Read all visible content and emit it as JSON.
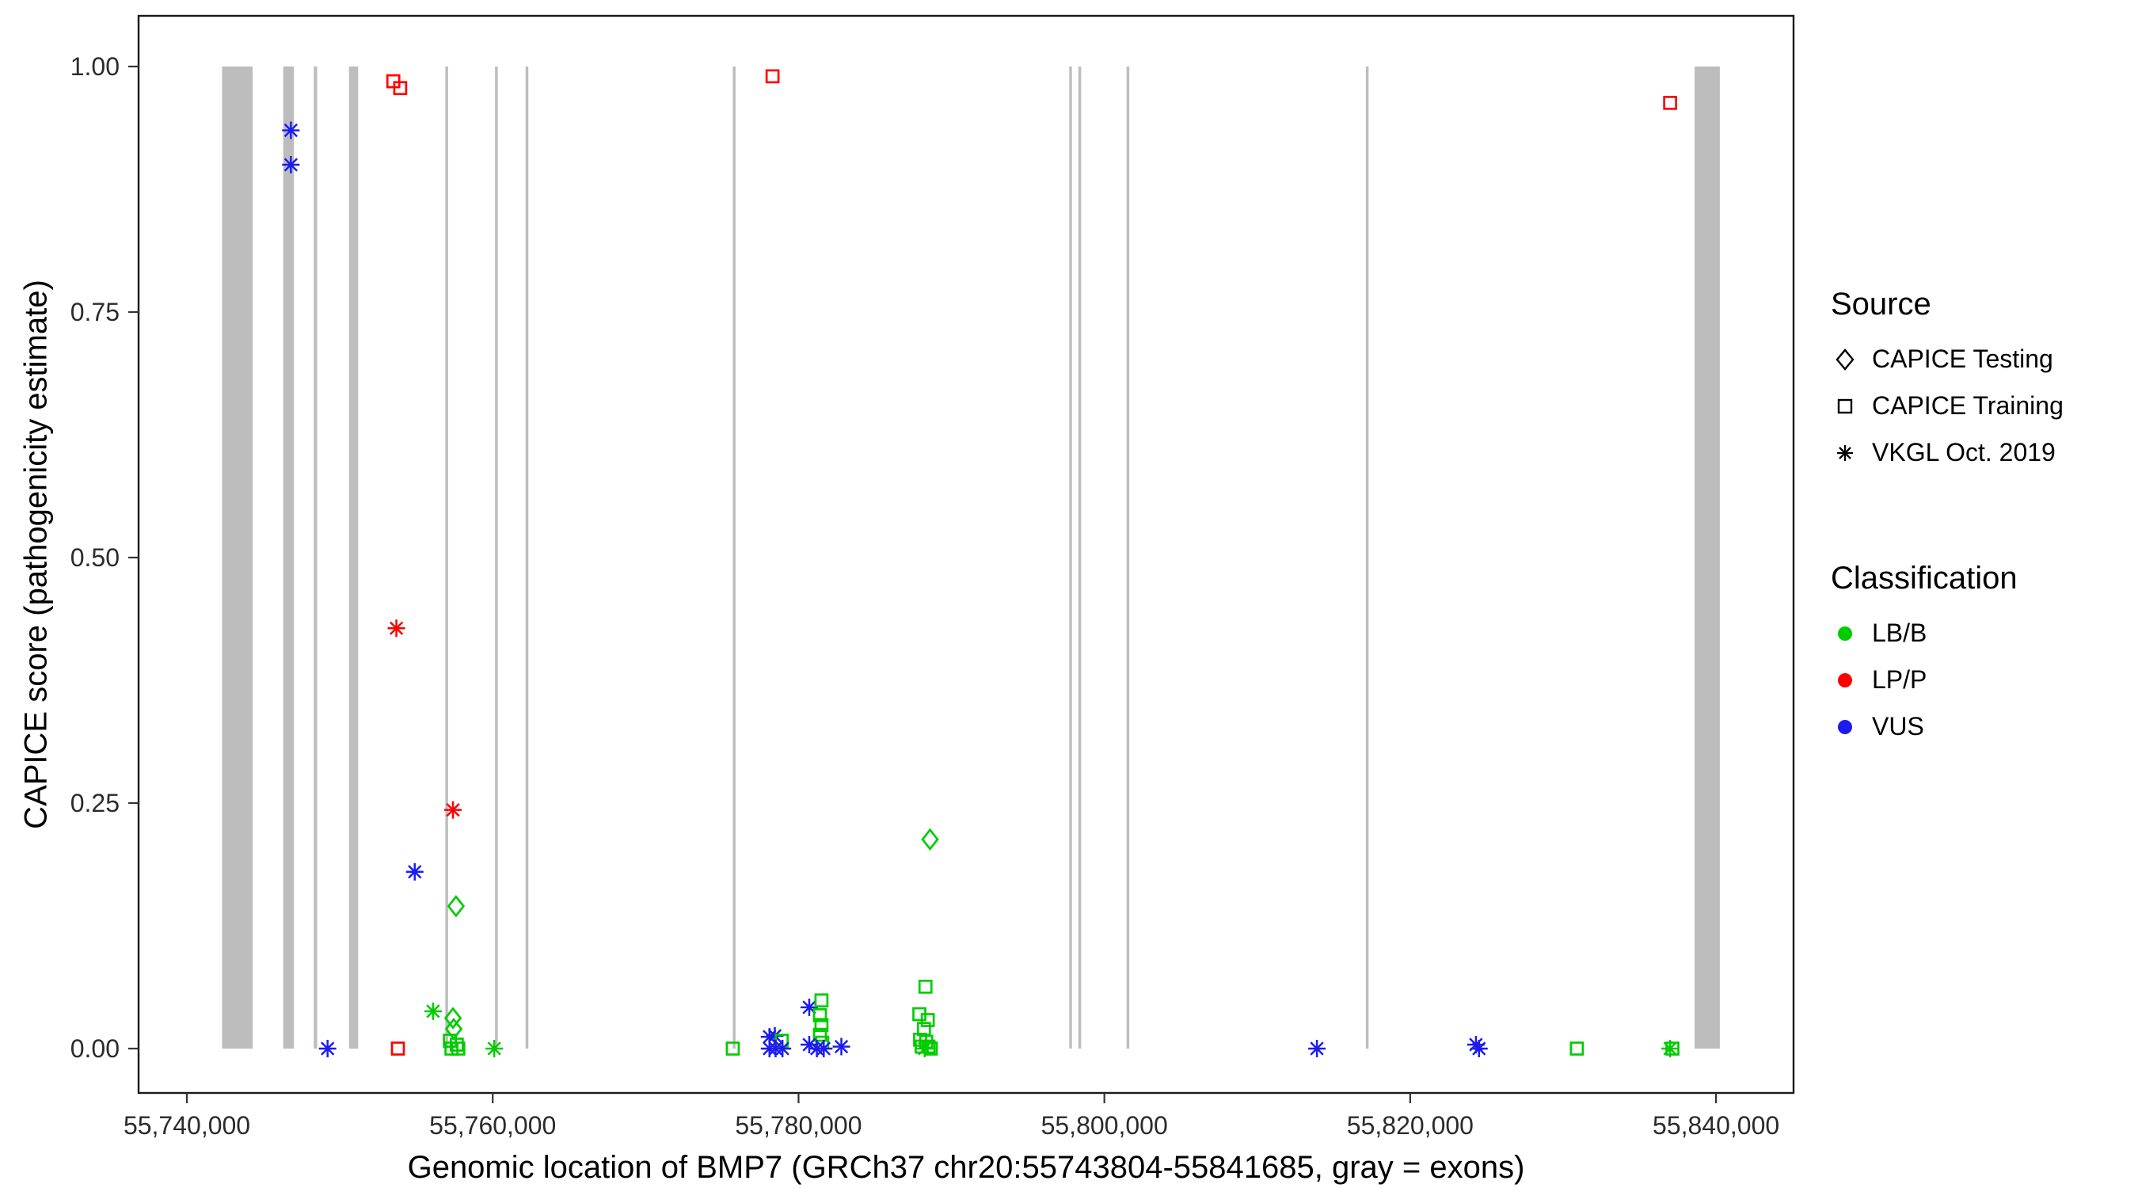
{
  "chart_data": {
    "type": "scatter",
    "title": "",
    "xlabel": "Genomic location of BMP7 (GRCh37 chr20:55743804-55841685, gray = exons)",
    "ylabel": "CAPICE score (pathogenicity estimate)",
    "x_domain": [
      55736840,
      55845070
    ],
    "y_domain": [
      -0.0452,
      1.0516
    ],
    "x_ticks": [
      {
        "value": 55740000,
        "label": "55,740,000"
      },
      {
        "value": 55760000,
        "label": "55,760,000"
      },
      {
        "value": 55780000,
        "label": "55,780,000"
      },
      {
        "value": 55800000,
        "label": "55,800,000"
      },
      {
        "value": 55820000,
        "label": "55,820,000"
      },
      {
        "value": 55840000,
        "label": "55,840,000"
      }
    ],
    "y_ticks": [
      {
        "value": 0.0,
        "label": "0.00"
      },
      {
        "value": 0.25,
        "label": "0.25"
      },
      {
        "value": 0.5,
        "label": "0.50"
      },
      {
        "value": 0.75,
        "label": "0.75"
      },
      {
        "value": 1.0,
        "label": "1.00"
      }
    ],
    "exon_color": "#BDBDBD",
    "colors": {
      "LB/B": "#00CC00",
      "LP/P": "#FF0000",
      "VUS": "#1C1CF0"
    },
    "marker_shapes": {
      "testing": "open-diamond",
      "training": "open-square",
      "vkgl": "asterisk"
    },
    "exons": [
      [
        55742300,
        55744300
      ],
      [
        55746300,
        55747000
      ],
      [
        55748300,
        55748520
      ],
      [
        55750600,
        55751200
      ],
      [
        55756900,
        55757080
      ],
      [
        55760150,
        55760330
      ],
      [
        55762150,
        55762330
      ],
      [
        55775700,
        55775880
      ],
      [
        55797700,
        55797880
      ],
      [
        55798300,
        55798480
      ],
      [
        55801450,
        55801630
      ],
      [
        55817100,
        55817280
      ],
      [
        55838600,
        55840250
      ]
    ],
    "points": [
      {
        "x": 55746800,
        "y": 0.935,
        "source": "vkgl",
        "classification": "VUS"
      },
      {
        "x": 55746800,
        "y": 0.9,
        "source": "vkgl",
        "classification": "VUS"
      },
      {
        "x": 55753500,
        "y": 0.985,
        "source": "training",
        "classification": "LP/P"
      },
      {
        "x": 55753950,
        "y": 0.978,
        "source": "training",
        "classification": "LP/P"
      },
      {
        "x": 55778300,
        "y": 0.99,
        "source": "training",
        "classification": "LP/P"
      },
      {
        "x": 55837000,
        "y": 0.963,
        "source": "training",
        "classification": "LP/P"
      },
      {
        "x": 55753700,
        "y": 0.428,
        "source": "vkgl",
        "classification": "LP/P"
      },
      {
        "x": 55757400,
        "y": 0.243,
        "source": "vkgl",
        "classification": "LP/P"
      },
      {
        "x": 55754900,
        "y": 0.18,
        "source": "vkgl",
        "classification": "VUS"
      },
      {
        "x": 55757600,
        "y": 0.145,
        "source": "testing",
        "classification": "LB/B"
      },
      {
        "x": 55788600,
        "y": 0.213,
        "source": "testing",
        "classification": "LB/B"
      },
      {
        "x": 55756100,
        "y": 0.038,
        "source": "vkgl",
        "classification": "LB/B"
      },
      {
        "x": 55757400,
        "y": 0.031,
        "source": "testing",
        "classification": "LB/B"
      },
      {
        "x": 55757450,
        "y": 0.02,
        "source": "testing",
        "classification": "LB/B"
      },
      {
        "x": 55757200,
        "y": 0.008,
        "source": "training",
        "classification": "LB/B"
      },
      {
        "x": 55757650,
        "y": 0.004,
        "source": "training",
        "classification": "LB/B"
      },
      {
        "x": 55757300,
        "y": 0.0,
        "source": "training",
        "classification": "LB/B"
      },
      {
        "x": 55757750,
        "y": 0.0,
        "source": "training",
        "classification": "LB/B"
      },
      {
        "x": 55753800,
        "y": 0.0,
        "source": "training",
        "classification": "LP/P"
      },
      {
        "x": 55749200,
        "y": 0.0,
        "source": "vkgl",
        "classification": "VUS"
      },
      {
        "x": 55760100,
        "y": 0.0,
        "source": "vkgl",
        "classification": "LB/B"
      },
      {
        "x": 55775700,
        "y": 0.0,
        "source": "training",
        "classification": "LB/B"
      },
      {
        "x": 55778100,
        "y": 0.012,
        "source": "vkgl",
        "classification": "VUS"
      },
      {
        "x": 55778450,
        "y": 0.013,
        "source": "vkgl",
        "classification": "VUS"
      },
      {
        "x": 55778900,
        "y": 0.008,
        "source": "training",
        "classification": "LB/B"
      },
      {
        "x": 55778100,
        "y": 0.0,
        "source": "vkgl",
        "classification": "VUS"
      },
      {
        "x": 55778500,
        "y": 0.0,
        "source": "vkgl",
        "classification": "VUS"
      },
      {
        "x": 55778950,
        "y": 0.0,
        "source": "vkgl",
        "classification": "VUS"
      },
      {
        "x": 55780700,
        "y": 0.042,
        "source": "vkgl",
        "classification": "VUS"
      },
      {
        "x": 55781500,
        "y": 0.049,
        "source": "training",
        "classification": "LB/B"
      },
      {
        "x": 55781400,
        "y": 0.034,
        "source": "training",
        "classification": "LB/B"
      },
      {
        "x": 55781500,
        "y": 0.024,
        "source": "training",
        "classification": "LB/B"
      },
      {
        "x": 55781400,
        "y": 0.014,
        "source": "training",
        "classification": "LB/B"
      },
      {
        "x": 55781550,
        "y": 0.006,
        "source": "training",
        "classification": "LB/B"
      },
      {
        "x": 55780700,
        "y": 0.004,
        "source": "vkgl",
        "classification": "VUS"
      },
      {
        "x": 55781200,
        "y": 0.0,
        "source": "vkgl",
        "classification": "VUS"
      },
      {
        "x": 55781650,
        "y": 0.0,
        "source": "vkgl",
        "classification": "VUS"
      },
      {
        "x": 55782800,
        "y": 0.002,
        "source": "vkgl",
        "classification": "VUS"
      },
      {
        "x": 55788300,
        "y": 0.063,
        "source": "training",
        "classification": "LB/B"
      },
      {
        "x": 55787900,
        "y": 0.035,
        "source": "training",
        "classification": "LB/B"
      },
      {
        "x": 55788450,
        "y": 0.029,
        "source": "training",
        "classification": "LB/B"
      },
      {
        "x": 55788200,
        "y": 0.02,
        "source": "training",
        "classification": "LB/B"
      },
      {
        "x": 55787950,
        "y": 0.009,
        "source": "training",
        "classification": "LB/B"
      },
      {
        "x": 55788350,
        "y": 0.007,
        "source": "training",
        "classification": "LB/B"
      },
      {
        "x": 55788050,
        "y": 0.002,
        "source": "training",
        "classification": "LB/B"
      },
      {
        "x": 55788500,
        "y": 0.002,
        "source": "training",
        "classification": "LB/B"
      },
      {
        "x": 55788250,
        "y": 0.0,
        "source": "vkgl",
        "classification": "LB/B"
      },
      {
        "x": 55788650,
        "y": 0.0,
        "source": "training",
        "classification": "LB/B"
      },
      {
        "x": 55813900,
        "y": 0.0,
        "source": "vkgl",
        "classification": "VUS"
      },
      {
        "x": 55824300,
        "y": 0.004,
        "source": "vkgl",
        "classification": "VUS"
      },
      {
        "x": 55824500,
        "y": 0.0,
        "source": "vkgl",
        "classification": "VUS"
      },
      {
        "x": 55830900,
        "y": 0.0,
        "source": "training",
        "classification": "LB/B"
      },
      {
        "x": 55837000,
        "y": 0.0,
        "source": "vkgl",
        "classification": "LB/B"
      },
      {
        "x": 55837150,
        "y": 0.0,
        "source": "training",
        "classification": "LB/B"
      }
    ]
  },
  "legend": {
    "source": {
      "title": "Source",
      "items": [
        {
          "label": "CAPICE Testing",
          "marker": "open-diamond"
        },
        {
          "label": "CAPICE Training",
          "marker": "open-square"
        },
        {
          "label": "VKGL Oct. 2019",
          "marker": "asterisk"
        }
      ]
    },
    "classification": {
      "title": "Classification",
      "items": [
        {
          "label": "LB/B",
          "color": "#00CC00"
        },
        {
          "label": "LP/P",
          "color": "#FF0000"
        },
        {
          "label": "VUS",
          "color": "#1C1CF0"
        }
      ]
    }
  }
}
